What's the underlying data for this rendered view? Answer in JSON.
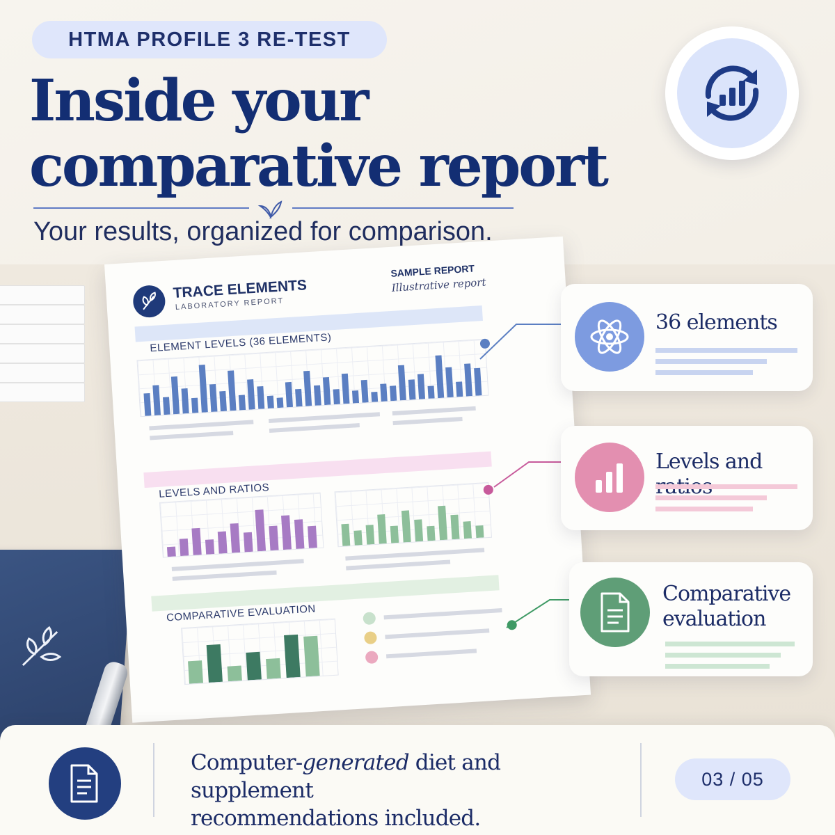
{
  "header": {
    "badge": "HTMA PROFILE 3 RE-TEST",
    "title_line1": "Inside your",
    "title_line2": "comparative report",
    "subtitle": "Your results, organized for comparison."
  },
  "report": {
    "lab_title": "TRACE ELEMENTS",
    "lab_subtitle": "LABORATORY REPORT",
    "sample_label": "SAMPLE REPORT",
    "illustrative": "Illustrative report",
    "sections": [
      {
        "label": "ELEMENT LEVELS (36 ELEMENTS)",
        "color": "#dde6f8"
      },
      {
        "label": "LEVELS AND RATIOS",
        "color": "#f8dff0"
      },
      {
        "label": "COMPARATIVE EVALUATION",
        "color": "#e2f0e2"
      }
    ],
    "chart_colors": {
      "blue": "#5b7fc2",
      "purple": "#a77bc4",
      "green": "#8dbf9a",
      "dark_green": "#3d7a62"
    }
  },
  "cards": [
    {
      "label": "36 elements",
      "icon": "atom-icon",
      "accent": "#6e8fd8",
      "bar": "#c8d4f0"
    },
    {
      "label": "Levels and ratios",
      "icon": "bar-chart-icon",
      "accent": "#dd88a8",
      "bar": "#f4c9d8"
    },
    {
      "label_line1": "Comparative",
      "label_line2": "evaluation",
      "icon": "document-icon",
      "accent": "#5f9e77",
      "bar": "#cde6d3"
    }
  ],
  "footer": {
    "text_part1": "Computer-",
    "text_em": "generated",
    "text_part2": " diet and supplement",
    "text_line2": "recommendations included.",
    "page": "03 / 05"
  },
  "colors": {
    "navy": "#132e73",
    "badge_bg": "#dfe6fb"
  }
}
